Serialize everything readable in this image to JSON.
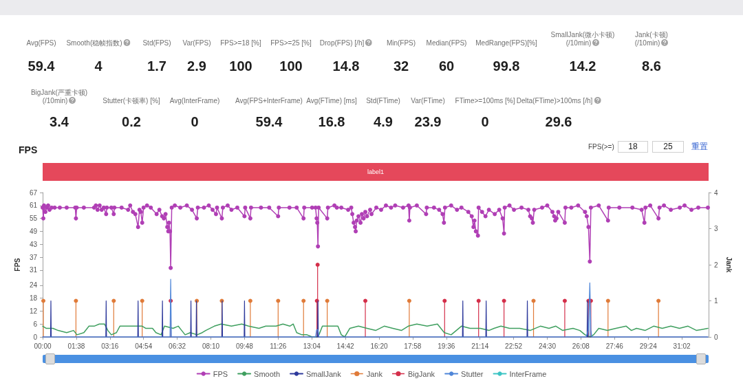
{
  "chart_data": [
    {
      "type": "other",
      "categories": [
        "Avg(FPS)",
        "Smooth(稳帧指数)",
        "Std(FPS)",
        "Var(FPS)",
        "FPS>=18 [%]",
        "FPS>=25 [%]",
        "Drop(FPS) [/h]",
        "Min(FPS)",
        "Median(FPS)",
        "MedRange(FPS)[%]",
        "SmallJank(微小卡顿)(/10min)",
        "Jank(卡顿)(/10min)",
        "BigJank(严重卡顿)(/10min)",
        "Stutter(卡顿率) [%]",
        "Avg(InterFrame)",
        "Avg(FPS+InterFrame)",
        "Avg(FTime) [ms]",
        "Std(FTime)",
        "Var(FTime)",
        "FTime>=100ms [%]",
        "Delta(FTime)>100ms [/h]"
      ],
      "values": [
        59.4,
        4,
        1.7,
        2.9,
        100,
        100,
        14.8,
        32,
        60,
        99.8,
        14.2,
        8.6,
        3.4,
        0.2,
        0,
        59.4,
        16.8,
        4.9,
        23.9,
        0,
        29.6
      ],
      "data_labels": true
    },
    {
      "type": "line",
      "title": "FPS",
      "ylabel": "FPS",
      "y2label": "Jank",
      "xlim": [
        0,
        1940
      ],
      "xticks": [
        {
          "value": 0,
          "label": "00:00"
        },
        {
          "value": 98,
          "label": "01:38"
        },
        {
          "value": 196,
          "label": "03:16"
        },
        {
          "value": 294,
          "label": "04:54"
        },
        {
          "value": 392,
          "label": "06:32"
        },
        {
          "value": 490,
          "label": "08:10"
        },
        {
          "value": 588,
          "label": "09:48"
        },
        {
          "value": 686,
          "label": "11:26"
        },
        {
          "value": 784,
          "label": "13:04"
        },
        {
          "value": 882,
          "label": "14:42"
        },
        {
          "value": 980,
          "label": "16:20"
        },
        {
          "value": 1078,
          "label": "17:58"
        },
        {
          "value": 1176,
          "label": "19:36"
        },
        {
          "value": 1274,
          "label": "21:14"
        },
        {
          "value": 1372,
          "label": "22:52"
        },
        {
          "value": 1470,
          "label": "24:30"
        },
        {
          "value": 1568,
          "label": "26:08"
        },
        {
          "value": 1666,
          "label": "27:46"
        },
        {
          "value": 1764,
          "label": "29:24"
        },
        {
          "value": 1862,
          "label": "31:02"
        }
      ],
      "ylim": [
        0,
        67
      ],
      "yticks": [
        0,
        6,
        12,
        18,
        24,
        31,
        37,
        43,
        49,
        55,
        61,
        67
      ],
      "y2lim": [
        0,
        4
      ],
      "y2ticks": [
        0,
        1,
        2,
        3,
        4
      ],
      "legend": "bottom",
      "annotations": [
        "FPS(>=)",
        "18",
        "25",
        "重置",
        "label1"
      ],
      "series": [
        {
          "name": "FPS",
          "color": "#b03fb5",
          "marker": "circle",
          "x": [
            0,
            2,
            4,
            8,
            12,
            16,
            20,
            26,
            35,
            50,
            70,
            95,
            97,
            99,
            120,
            150,
            155,
            160,
            166,
            172,
            178,
            185,
            187,
            200,
            207,
            209,
            230,
            249,
            255,
            263,
            270,
            278,
            282,
            286,
            290,
            294,
            304,
            315,
            332,
            340,
            348,
            353,
            358,
            363,
            366,
            368,
            371,
            373,
            376,
            385,
            401,
            420,
            435,
            449,
            452,
            470,
            484,
            495,
            505,
            508,
            522,
            525,
            539,
            550,
            567,
            588,
            590,
            605,
            607,
            636,
            660,
            686,
            688,
            719,
            740,
            760,
            762,
            785,
            795,
            798,
            800,
            802,
            804,
            829,
            831,
            850,
            857,
            870,
            890,
            899,
            902,
            906,
            910,
            912,
            915,
            920,
            926,
            930,
            935,
            940,
            945,
            954,
            958,
            972,
            986,
            1000,
            1015,
            1027,
            1050,
            1066,
            1068,
            1070,
            1090,
            1117,
            1119,
            1140,
            1155,
            1165,
            1169,
            1172,
            1190,
            1207,
            1220,
            1240,
            1250,
            1255,
            1258,
            1262,
            1268,
            1270,
            1280,
            1290,
            1300,
            1317,
            1330,
            1340,
            1344,
            1346,
            1360,
            1373,
            1395,
            1415,
            1420,
            1425,
            1428,
            1432,
            1455,
            1470,
            1485,
            1490,
            1493,
            1497,
            1502,
            1521,
            1523,
            1540,
            1560,
            1580,
            1585,
            1590,
            1594,
            1597,
            1620,
            1647,
            1649,
            1680,
            1718,
            1745,
            1753,
            1756,
            1770,
            1794,
            1797,
            1810,
            1830,
            1856,
            1870,
            1890,
            1910,
            1938
          ],
          "values": [
            60,
            55,
            61,
            58,
            60,
            61,
            59,
            60,
            60,
            60,
            60,
            60,
            55,
            60,
            60,
            60,
            61,
            59,
            61,
            59,
            60,
            57,
            60,
            60,
            57,
            60,
            60,
            59,
            61,
            58,
            57,
            51,
            59,
            58,
            53,
            60,
            61,
            60,
            57,
            59,
            56,
            55,
            57,
            51,
            49,
            53,
            49,
            32,
            60,
            61,
            60,
            61,
            59,
            55,
            60,
            60,
            61,
            59,
            57,
            60,
            55,
            60,
            61,
            59,
            60,
            56,
            60,
            55,
            60,
            60,
            60,
            56,
            60,
            60,
            60,
            55,
            60,
            60,
            60,
            55,
            53,
            42,
            60,
            55,
            60,
            61,
            60,
            60,
            59,
            60,
            57,
            53,
            51,
            49,
            54,
            56,
            53,
            57,
            55,
            58,
            56,
            59,
            57,
            60,
            59,
            61,
            60,
            61,
            60,
            61,
            54,
            60,
            61,
            57,
            60,
            60,
            59,
            57,
            53,
            60,
            61,
            59,
            60,
            58,
            56,
            51,
            54,
            49,
            47,
            60,
            58,
            56,
            59,
            57,
            59,
            55,
            48,
            60,
            61,
            59,
            60,
            59,
            56,
            55,
            53,
            59,
            60,
            61,
            58,
            56,
            54,
            55,
            58,
            53,
            60,
            60,
            61,
            58,
            56,
            51,
            35,
            60,
            61,
            54,
            60,
            60,
            60,
            59,
            53,
            60,
            61,
            55,
            60,
            61,
            59,
            60,
            61,
            59,
            60,
            60
          ]
        },
        {
          "name": "Smooth",
          "color": "#3f9f5f",
          "x": [
            0,
            10,
            30,
            45,
            70,
            90,
            100,
            120,
            135,
            150,
            165,
            180,
            190,
            200,
            215,
            225,
            240,
            255,
            275,
            290,
            300,
            320,
            330,
            345,
            355,
            380,
            395,
            405,
            415,
            430,
            450,
            465,
            475,
            500,
            520,
            550,
            580,
            600,
            630,
            650,
            680,
            700,
            720,
            730,
            740,
            755,
            770,
            785,
            800,
            805,
            815,
            840,
            860,
            870,
            880,
            895,
            920,
            945,
            970,
            995,
            1020,
            1045,
            1065,
            1090,
            1120,
            1150,
            1170,
            1190,
            1205,
            1220,
            1245,
            1275,
            1300,
            1315,
            1335,
            1360,
            1390,
            1420,
            1450,
            1475,
            1495,
            1515,
            1545,
            1565,
            1580,
            1595,
            1605,
            1620,
            1645,
            1670,
            1700,
            1715,
            1730,
            1755,
            1780,
            1805,
            1830,
            1855,
            1880,
            1905,
            1938
          ],
          "values": [
            5,
            4,
            4,
            3,
            2,
            3,
            1,
            2,
            5,
            5,
            6,
            6,
            3,
            1,
            2,
            5,
            5,
            5,
            5,
            5,
            4,
            4,
            2,
            1,
            5,
            4,
            5,
            3,
            1,
            2,
            1,
            2,
            3,
            5,
            6,
            5,
            6,
            5,
            4,
            5,
            5,
            6,
            5,
            6,
            2,
            1,
            1,
            0,
            0,
            1,
            5,
            5,
            5,
            1,
            0,
            4,
            5,
            4,
            3,
            5,
            4,
            3,
            5,
            6,
            5,
            6,
            2,
            1,
            3,
            5,
            4,
            4,
            3,
            4,
            5,
            4,
            4,
            3,
            5,
            4,
            5,
            3,
            4,
            3,
            1,
            0,
            1,
            4,
            3,
            4,
            5,
            3,
            4,
            3,
            5,
            4,
            5,
            4,
            5,
            3,
            4
          ]
        },
        {
          "name": "SmallJank",
          "color": "#2e3a9c",
          "axis": "y2",
          "x": [
            0,
            23,
            24,
            25,
            184,
            185,
            186,
            277,
            278,
            279,
            348,
            349,
            350,
            431,
            432,
            433,
            447,
            448,
            449,
            522,
            523,
            524,
            587,
            588,
            589,
            801,
            802,
            803,
            1223,
            1224,
            1225,
            1291,
            1292,
            1293,
            1411,
            1412,
            1413,
            1586,
            1587,
            1588,
            1938
          ],
          "values": [
            0,
            0,
            1,
            0,
            0,
            1,
            0,
            0,
            1,
            0,
            0,
            1,
            0,
            0,
            1,
            0,
            0,
            1,
            0,
            0,
            1,
            0,
            0,
            1,
            0,
            0,
            1,
            0,
            0,
            1,
            0,
            0,
            1,
            0,
            0,
            1,
            0,
            0,
            1,
            0,
            0
          ]
        },
        {
          "name": "Jank",
          "type": "lollipop",
          "color": "#e07b39",
          "axis": "y2",
          "marker": "circle",
          "x": [
            2,
            97,
            207,
            290,
            449,
            522,
            605,
            686,
            760,
            829,
            1068,
            1430,
            1647,
            1794
          ],
          "values": [
            1,
            1,
            1,
            1,
            1,
            1,
            1,
            1,
            1,
            1,
            1,
            1,
            1,
            1
          ]
        },
        {
          "name": "BigJank",
          "type": "lollipop",
          "color": "#d42f4a",
          "axis": "y2",
          "marker": "circle",
          "x": [
            373,
            799,
            801,
            940,
            1171,
            1270,
            1344,
            1521,
            1590,
            1597
          ],
          "values": [
            1,
            1,
            2,
            1,
            1,
            1,
            1,
            1,
            1,
            1
          ]
        },
        {
          "name": "Stutter",
          "type": "area",
          "color": "#4f86d8",
          "axis": "y2",
          "x": [
            0,
            371,
            373,
            375,
            795,
            798,
            802,
            805,
            1583,
            1590,
            1594,
            1597,
            1600,
            1938
          ],
          "values": [
            0,
            0,
            1.6,
            0,
            0,
            0.2,
            0.2,
            0,
            0,
            0.2,
            1.5,
            0.2,
            0,
            0
          ]
        },
        {
          "name": "InterFrame",
          "color": "#3cc4c4"
        }
      ]
    }
  ]
}
